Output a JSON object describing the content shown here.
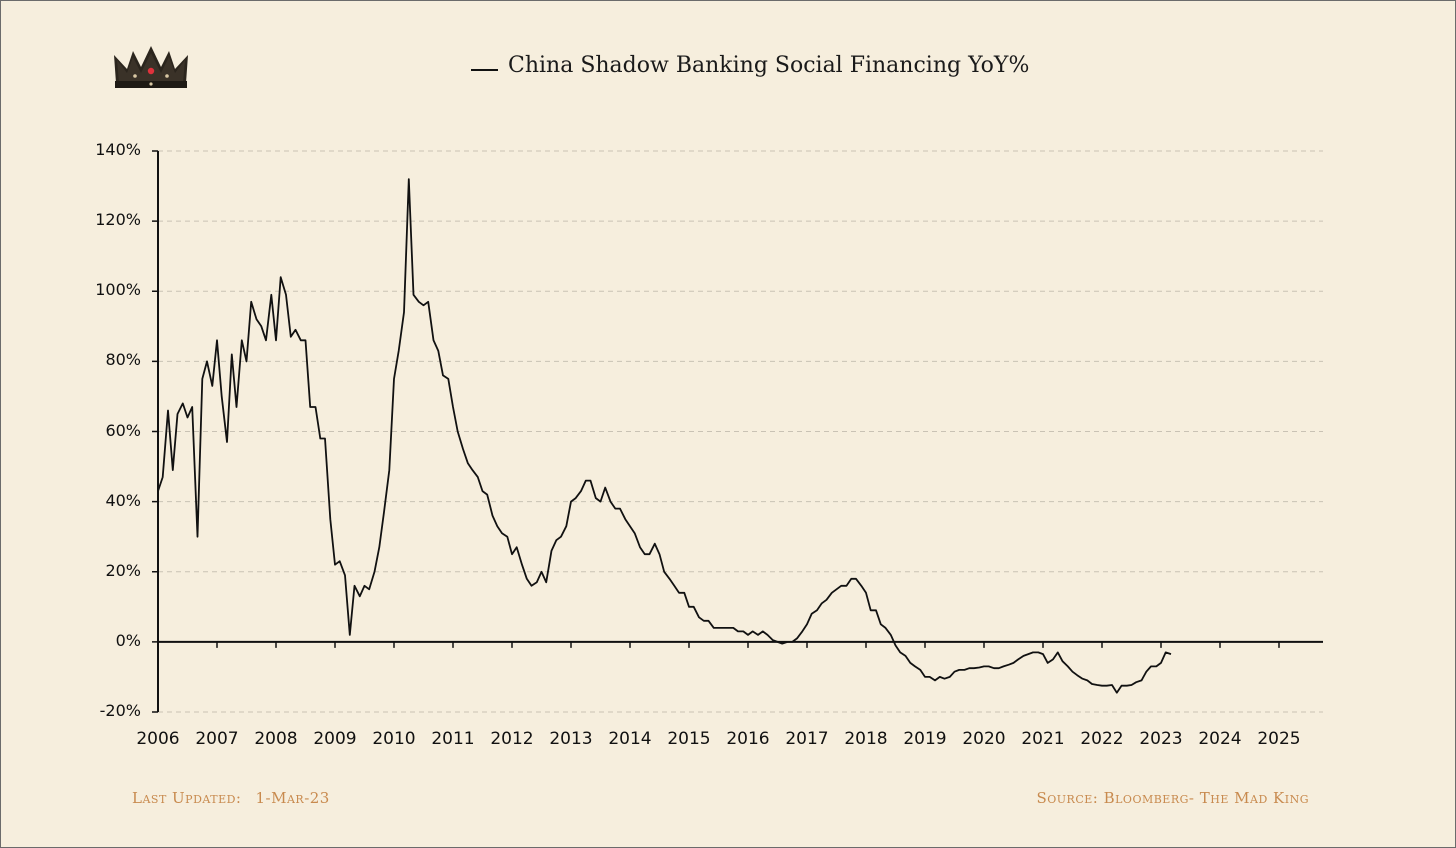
{
  "colors": {
    "background": "#f6eedd",
    "line": "#111111",
    "grid": "#c9c2b4",
    "footer_text": "#c88a4e",
    "crown_jewel": "#e0323c"
  },
  "icons": {
    "logo": "crown-icon"
  },
  "footer": {
    "last_updated_label": "Last Updated:",
    "last_updated_value": "1-Mar-23",
    "source": "Source: Bloomberg- The Mad King"
  },
  "chart_data": {
    "type": "line",
    "title": "",
    "xlabel": "",
    "ylabel": "",
    "legend": {
      "position": "top",
      "entries": [
        "China Shadow Banking Social Financing YoY%"
      ]
    },
    "grid": "horizontal dashed",
    "xlim": [
      2006,
      2026
    ],
    "ylim": [
      -20,
      140
    ],
    "x_ticks": [
      2006,
      2007,
      2008,
      2009,
      2010,
      2011,
      2012,
      2013,
      2014,
      2015,
      2016,
      2017,
      2018,
      2019,
      2020,
      2021,
      2022,
      2023,
      2024,
      2025
    ],
    "x_tick_labels": [
      "2006",
      "2007",
      "2008",
      "2009",
      "2010",
      "2011",
      "2012",
      "2013",
      "2014",
      "2015",
      "2016",
      "2017",
      "2018",
      "2019",
      "2020",
      "2021",
      "2022",
      "2023",
      "2024",
      "2025"
    ],
    "y_ticks": [
      -20,
      0,
      20,
      40,
      60,
      80,
      100,
      120,
      140
    ],
    "y_tick_labels": [
      "-20%",
      "0%",
      "20%",
      "40%",
      "60%",
      "80%",
      "100%",
      "120%",
      "140%"
    ],
    "series": [
      {
        "name": "China Shadow Banking Social Financing YoY%",
        "points": [
          [
            2006.0,
            43
          ],
          [
            2006.08,
            47
          ],
          [
            2006.17,
            66
          ],
          [
            2006.25,
            49
          ],
          [
            2006.33,
            65
          ],
          [
            2006.42,
            68
          ],
          [
            2006.5,
            64
          ],
          [
            2006.58,
            67
          ],
          [
            2006.67,
            30
          ],
          [
            2006.75,
            75
          ],
          [
            2006.83,
            80
          ],
          [
            2006.92,
            73
          ],
          [
            2007.0,
            86
          ],
          [
            2007.08,
            70
          ],
          [
            2007.17,
            57
          ],
          [
            2007.25,
            82
          ],
          [
            2007.33,
            67
          ],
          [
            2007.42,
            86
          ],
          [
            2007.5,
            80
          ],
          [
            2007.58,
            97
          ],
          [
            2007.67,
            92
          ],
          [
            2007.75,
            90
          ],
          [
            2007.83,
            86
          ],
          [
            2007.92,
            99
          ],
          [
            2008.0,
            86
          ],
          [
            2008.08,
            104
          ],
          [
            2008.17,
            99
          ],
          [
            2008.25,
            87
          ],
          [
            2008.33,
            89
          ],
          [
            2008.42,
            86
          ],
          [
            2008.5,
            86
          ],
          [
            2008.58,
            67
          ],
          [
            2008.67,
            67
          ],
          [
            2008.75,
            58
          ],
          [
            2008.83,
            58
          ],
          [
            2008.92,
            35
          ],
          [
            2009.0,
            22
          ],
          [
            2009.08,
            23
          ],
          [
            2009.17,
            19
          ],
          [
            2009.25,
            2
          ],
          [
            2009.33,
            16
          ],
          [
            2009.42,
            13
          ],
          [
            2009.5,
            16
          ],
          [
            2009.58,
            15
          ],
          [
            2009.67,
            20
          ],
          [
            2009.75,
            27
          ],
          [
            2009.83,
            37
          ],
          [
            2009.92,
            49
          ],
          [
            2010.0,
            75
          ],
          [
            2010.08,
            83
          ],
          [
            2010.17,
            94
          ],
          [
            2010.25,
            132
          ],
          [
            2010.33,
            99
          ],
          [
            2010.42,
            97
          ],
          [
            2010.5,
            96
          ],
          [
            2010.58,
            97
          ],
          [
            2010.67,
            86
          ],
          [
            2010.75,
            83
          ],
          [
            2010.83,
            76
          ],
          [
            2010.92,
            75
          ],
          [
            2011.0,
            67
          ],
          [
            2011.08,
            60
          ],
          [
            2011.17,
            55
          ],
          [
            2011.25,
            51
          ],
          [
            2011.33,
            49
          ],
          [
            2011.42,
            47
          ],
          [
            2011.5,
            43
          ],
          [
            2011.58,
            42
          ],
          [
            2011.67,
            36
          ],
          [
            2011.75,
            33
          ],
          [
            2011.83,
            31
          ],
          [
            2011.92,
            30
          ],
          [
            2012.0,
            25
          ],
          [
            2012.08,
            27
          ],
          [
            2012.17,
            22
          ],
          [
            2012.25,
            18
          ],
          [
            2012.33,
            16
          ],
          [
            2012.42,
            17
          ],
          [
            2012.5,
            20
          ],
          [
            2012.58,
            17
          ],
          [
            2012.67,
            26
          ],
          [
            2012.75,
            29
          ],
          [
            2012.83,
            30
          ],
          [
            2012.92,
            33
          ],
          [
            2013.0,
            40
          ],
          [
            2013.08,
            41
          ],
          [
            2013.17,
            43
          ],
          [
            2013.25,
            46
          ],
          [
            2013.33,
            46
          ],
          [
            2013.42,
            41
          ],
          [
            2013.5,
            40
          ],
          [
            2013.58,
            44
          ],
          [
            2013.67,
            40
          ],
          [
            2013.75,
            38
          ],
          [
            2013.83,
            38
          ],
          [
            2013.92,
            35
          ],
          [
            2014.0,
            33
          ],
          [
            2014.08,
            31
          ],
          [
            2014.17,
            27
          ],
          [
            2014.25,
            25
          ],
          [
            2014.33,
            25
          ],
          [
            2014.42,
            28
          ],
          [
            2014.5,
            25
          ],
          [
            2014.58,
            20
          ],
          [
            2014.67,
            18
          ],
          [
            2014.75,
            16
          ],
          [
            2014.83,
            14
          ],
          [
            2014.92,
            14
          ],
          [
            2015.0,
            10
          ],
          [
            2015.08,
            10
          ],
          [
            2015.17,
            7
          ],
          [
            2015.25,
            6
          ],
          [
            2015.33,
            6
          ],
          [
            2015.42,
            4
          ],
          [
            2015.5,
            4
          ],
          [
            2015.58,
            4
          ],
          [
            2015.67,
            4
          ],
          [
            2015.75,
            4
          ],
          [
            2015.83,
            3
          ],
          [
            2015.92,
            3
          ],
          [
            2016.0,
            2
          ],
          [
            2016.08,
            3
          ],
          [
            2016.17,
            2
          ],
          [
            2016.25,
            3
          ],
          [
            2016.33,
            2
          ],
          [
            2016.42,
            0.5
          ],
          [
            2016.5,
            0
          ],
          [
            2016.58,
            -0.5
          ],
          [
            2016.67,
            0
          ],
          [
            2016.75,
            0
          ],
          [
            2016.83,
            1
          ],
          [
            2016.92,
            3
          ],
          [
            2017.0,
            5
          ],
          [
            2017.08,
            8
          ],
          [
            2017.17,
            9
          ],
          [
            2017.25,
            11
          ],
          [
            2017.33,
            12
          ],
          [
            2017.42,
            14
          ],
          [
            2017.5,
            15
          ],
          [
            2017.58,
            16
          ],
          [
            2017.67,
            16
          ],
          [
            2017.75,
            18
          ],
          [
            2017.83,
            18
          ],
          [
            2017.92,
            16
          ],
          [
            2018.0,
            14
          ],
          [
            2018.08,
            9
          ],
          [
            2018.17,
            9
          ],
          [
            2018.25,
            5
          ],
          [
            2018.33,
            4
          ],
          [
            2018.42,
            2
          ],
          [
            2018.5,
            -1
          ],
          [
            2018.58,
            -3
          ],
          [
            2018.67,
            -4
          ],
          [
            2018.75,
            -6
          ],
          [
            2018.83,
            -7
          ],
          [
            2018.92,
            -8
          ],
          [
            2019.0,
            -10
          ],
          [
            2019.08,
            -10
          ],
          [
            2019.17,
            -11
          ],
          [
            2019.25,
            -10
          ],
          [
            2019.33,
            -10.5
          ],
          [
            2019.42,
            -10
          ],
          [
            2019.5,
            -8.5
          ],
          [
            2019.58,
            -8
          ],
          [
            2019.67,
            -8
          ],
          [
            2019.75,
            -7.5
          ],
          [
            2019.83,
            -7.5
          ],
          [
            2019.92,
            -7.3
          ],
          [
            2020.0,
            -7
          ],
          [
            2020.08,
            -7
          ],
          [
            2020.17,
            -7.5
          ],
          [
            2020.25,
            -7.5
          ],
          [
            2020.33,
            -7
          ],
          [
            2020.42,
            -6.5
          ],
          [
            2020.5,
            -6
          ],
          [
            2020.58,
            -5
          ],
          [
            2020.67,
            -4
          ],
          [
            2020.75,
            -3.5
          ],
          [
            2020.83,
            -3
          ],
          [
            2020.92,
            -3
          ],
          [
            2021.0,
            -3.5
          ],
          [
            2021.08,
            -6
          ],
          [
            2021.17,
            -5
          ],
          [
            2021.25,
            -3
          ],
          [
            2021.33,
            -5.5
          ],
          [
            2021.42,
            -7
          ],
          [
            2021.5,
            -8.5
          ],
          [
            2021.58,
            -9.5
          ],
          [
            2021.67,
            -10.5
          ],
          [
            2021.75,
            -11
          ],
          [
            2021.83,
            -12
          ],
          [
            2021.92,
            -12.3
          ],
          [
            2022.0,
            -12.5
          ],
          [
            2022.08,
            -12.5
          ],
          [
            2022.17,
            -12.3
          ],
          [
            2022.25,
            -14.5
          ],
          [
            2022.33,
            -12.5
          ],
          [
            2022.42,
            -12.5
          ],
          [
            2022.5,
            -12.3
          ],
          [
            2022.58,
            -11.5
          ],
          [
            2022.67,
            -11
          ],
          [
            2022.75,
            -8.5
          ],
          [
            2022.83,
            -7
          ],
          [
            2022.92,
            -7
          ],
          [
            2023.0,
            -6
          ],
          [
            2023.08,
            -3
          ],
          [
            2023.17,
            -3.5
          ]
        ]
      }
    ]
  }
}
